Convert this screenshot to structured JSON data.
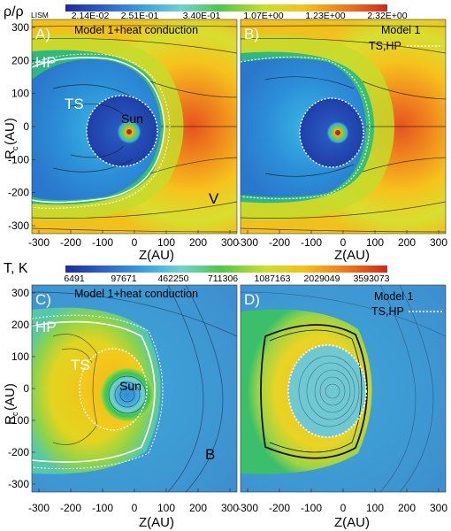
{
  "figure": {
    "top_colorbar": {
      "label_main": "ρ/ρ",
      "label_sub": "LISM",
      "ticks": [
        "2.14E-02",
        "2.51E-01",
        "3.40E-01",
        "1.07E+00",
        "1.23E+00",
        "2.32E+00"
      ],
      "colors": [
        "#1d2a9e",
        "#2d63c8",
        "#3aa0de",
        "#6fd2cf",
        "#4ec74a",
        "#c9df2a",
        "#f2c21a",
        "#f07a1a",
        "#d62618"
      ]
    },
    "bottom_colorbar": {
      "label": "T, K",
      "ticks": [
        "6491",
        "97671",
        "462250",
        "711306",
        "1087163",
        "2029049",
        "3593073"
      ],
      "colors": [
        "#1d2a9e",
        "#2d63c8",
        "#3aa0de",
        "#6fd2cf",
        "#4ec74a",
        "#c9df2a",
        "#f2c21a",
        "#f07a1a",
        "#d62618"
      ]
    },
    "axes": {
      "x_label": "Z(AU)",
      "y_label_main": "R",
      "y_label_sub": "c",
      "y_label_tail": "(AU)",
      "x_ticks": [
        "-300",
        "-200",
        "-100",
        "0",
        "100",
        "200",
        "300"
      ],
      "y_ticks": [
        "300",
        "200",
        "100",
        "0",
        "-100",
        "-200",
        "-300"
      ]
    },
    "panels": {
      "A": {
        "letter": "A)",
        "caption": "Model 1+heat conduction",
        "hp": "HP",
        "ts": "TS",
        "sun": "Sun",
        "vec": "V"
      },
      "B": {
        "letter": "B)",
        "caption_l1": "Model 1",
        "caption_l2": "TS,HP"
      },
      "C": {
        "letter": "C)",
        "caption": "Model 1+heat conduction",
        "hp": "HP",
        "ts": "TS",
        "sun": "Sun",
        "vec": "B"
      },
      "D": {
        "letter": "D)",
        "caption_l1": "Model 1",
        "caption_l2": "TS,HP"
      }
    }
  }
}
